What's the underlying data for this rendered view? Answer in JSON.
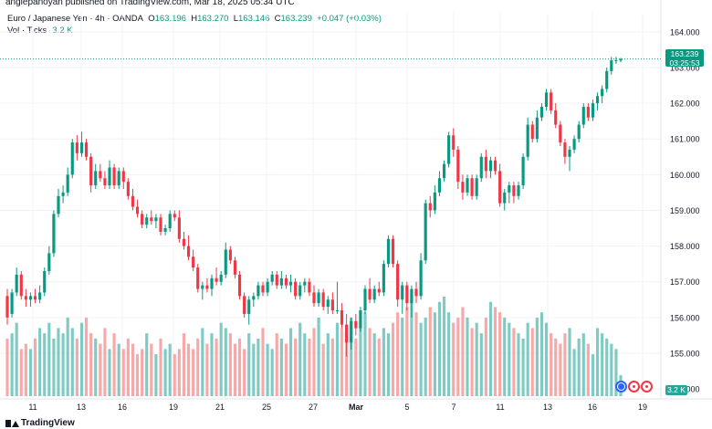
{
  "header": {
    "credit": "anglepanoyan published on TradingView.com, Mar 18, 2025 05:34 UTC"
  },
  "legend": {
    "symbol": "Euro / Japanese Yen · 4h · OANDA",
    "open_label": "O",
    "open": "163.196",
    "high_label": "H",
    "high": "163.270",
    "low_label": "L",
    "low": "163.146",
    "close_label": "C",
    "close": "163.239",
    "change": "+0.047 (+0.03%)",
    "volume_label": "Vol · Ticks",
    "volume_value": "3.2 K"
  },
  "price_tag": {
    "price": "163.239",
    "countdown": "03:25:53"
  },
  "volume_tag": "3.2 K",
  "footer": {
    "brand": "TradingView"
  },
  "colors": {
    "up": "#089981",
    "down": "#f23645",
    "vol_up": "#7fcbc4",
    "vol_down": "#f7a9a9",
    "grid": "#f0f3fa",
    "axis_text": "#131722"
  },
  "chart_data": {
    "type": "candlestick",
    "interval": "4h",
    "y_axis_ticks": [
      "164.000",
      "163.000",
      "162.000",
      "161.000",
      "160.000",
      "159.000",
      "158.000",
      "157.000",
      "156.000",
      "155.000",
      "154.000"
    ],
    "ylim": [
      153.9,
      164.2
    ],
    "x_axis_ticks": [
      "11",
      "13",
      "16",
      "19",
      "21",
      "25",
      "27",
      "Mar",
      "5",
      "7",
      "11",
      "13",
      "16",
      "19"
    ],
    "grid": true,
    "last_price_line": 163.239,
    "candles": [
      {
        "o": 156.6,
        "h": 156.8,
        "l": 155.8,
        "c": 156.0
      },
      {
        "o": 156.1,
        "h": 156.8,
        "l": 156.0,
        "c": 156.7
      },
      {
        "o": 156.7,
        "h": 157.4,
        "l": 156.6,
        "c": 157.2
      },
      {
        "o": 157.2,
        "h": 157.3,
        "l": 156.5,
        "c": 156.6
      },
      {
        "o": 156.6,
        "h": 156.8,
        "l": 156.3,
        "c": 156.5
      },
      {
        "o": 156.5,
        "h": 156.7,
        "l": 156.3,
        "c": 156.6
      },
      {
        "o": 156.6,
        "h": 156.8,
        "l": 156.4,
        "c": 156.5
      },
      {
        "o": 156.5,
        "h": 156.9,
        "l": 156.4,
        "c": 156.7
      },
      {
        "o": 156.7,
        "h": 157.4,
        "l": 156.6,
        "c": 157.3
      },
      {
        "o": 157.3,
        "h": 158.0,
        "l": 157.2,
        "c": 157.8
      },
      {
        "o": 157.8,
        "h": 159.0,
        "l": 157.7,
        "c": 158.9
      },
      {
        "o": 158.9,
        "h": 159.6,
        "l": 158.8,
        "c": 159.4
      },
      {
        "o": 159.4,
        "h": 159.7,
        "l": 159.2,
        "c": 159.5
      },
      {
        "o": 159.5,
        "h": 160.2,
        "l": 159.4,
        "c": 160.0
      },
      {
        "o": 160.0,
        "h": 161.0,
        "l": 159.9,
        "c": 160.9
      },
      {
        "o": 160.9,
        "h": 161.1,
        "l": 160.4,
        "c": 160.6
      },
      {
        "o": 160.6,
        "h": 161.2,
        "l": 160.5,
        "c": 160.9
      },
      {
        "o": 160.9,
        "h": 161.0,
        "l": 160.4,
        "c": 160.5
      },
      {
        "o": 160.5,
        "h": 160.6,
        "l": 159.5,
        "c": 159.7
      },
      {
        "o": 159.7,
        "h": 160.3,
        "l": 159.6,
        "c": 160.1
      },
      {
        "o": 160.1,
        "h": 160.3,
        "l": 159.8,
        "c": 159.9
      },
      {
        "o": 159.9,
        "h": 160.1,
        "l": 159.6,
        "c": 159.7
      },
      {
        "o": 159.7,
        "h": 160.4,
        "l": 159.6,
        "c": 160.2
      },
      {
        "o": 160.2,
        "h": 160.3,
        "l": 159.6,
        "c": 159.7
      },
      {
        "o": 159.7,
        "h": 160.2,
        "l": 159.6,
        "c": 160.1
      },
      {
        "o": 160.1,
        "h": 160.2,
        "l": 159.6,
        "c": 159.8
      },
      {
        "o": 159.8,
        "h": 159.9,
        "l": 159.3,
        "c": 159.4
      },
      {
        "o": 159.4,
        "h": 159.6,
        "l": 159.0,
        "c": 159.1
      },
      {
        "o": 159.1,
        "h": 159.3,
        "l": 158.8,
        "c": 158.9
      },
      {
        "o": 158.9,
        "h": 159.0,
        "l": 158.5,
        "c": 158.6
      },
      {
        "o": 158.6,
        "h": 158.9,
        "l": 158.5,
        "c": 158.8
      },
      {
        "o": 158.8,
        "h": 159.0,
        "l": 158.6,
        "c": 158.7
      },
      {
        "o": 158.7,
        "h": 158.9,
        "l": 158.5,
        "c": 158.8
      },
      {
        "o": 158.8,
        "h": 158.9,
        "l": 158.3,
        "c": 158.4
      },
      {
        "o": 158.4,
        "h": 158.6,
        "l": 158.3,
        "c": 158.5
      },
      {
        "o": 158.5,
        "h": 159.0,
        "l": 158.4,
        "c": 158.9
      },
      {
        "o": 158.9,
        "h": 159.0,
        "l": 158.7,
        "c": 158.8
      },
      {
        "o": 158.8,
        "h": 159.0,
        "l": 158.1,
        "c": 158.2
      },
      {
        "o": 158.2,
        "h": 158.4,
        "l": 157.9,
        "c": 158.0
      },
      {
        "o": 158.0,
        "h": 158.3,
        "l": 157.6,
        "c": 157.7
      },
      {
        "o": 157.7,
        "h": 157.9,
        "l": 157.3,
        "c": 157.4
      },
      {
        "o": 157.4,
        "h": 157.5,
        "l": 156.7,
        "c": 156.8
      },
      {
        "o": 156.8,
        "h": 157.0,
        "l": 156.5,
        "c": 156.9
      },
      {
        "o": 156.9,
        "h": 157.1,
        "l": 156.7,
        "c": 156.8
      },
      {
        "o": 156.8,
        "h": 157.2,
        "l": 156.6,
        "c": 157.1
      },
      {
        "o": 157.1,
        "h": 157.4,
        "l": 156.9,
        "c": 157.0
      },
      {
        "o": 157.0,
        "h": 157.3,
        "l": 156.9,
        "c": 157.2
      },
      {
        "o": 157.2,
        "h": 158.1,
        "l": 157.1,
        "c": 157.9
      },
      {
        "o": 157.9,
        "h": 158.0,
        "l": 157.5,
        "c": 157.6
      },
      {
        "o": 157.6,
        "h": 157.7,
        "l": 157.1,
        "c": 157.2
      },
      {
        "o": 157.2,
        "h": 157.3,
        "l": 156.5,
        "c": 156.6
      },
      {
        "o": 156.6,
        "h": 156.7,
        "l": 156.0,
        "c": 156.1
      },
      {
        "o": 156.1,
        "h": 156.6,
        "l": 155.8,
        "c": 156.5
      },
      {
        "o": 156.5,
        "h": 156.7,
        "l": 156.3,
        "c": 156.6
      },
      {
        "o": 156.6,
        "h": 157.0,
        "l": 156.5,
        "c": 156.9
      },
      {
        "o": 156.9,
        "h": 157.0,
        "l": 156.6,
        "c": 156.7
      },
      {
        "o": 156.7,
        "h": 157.1,
        "l": 156.6,
        "c": 157.0
      },
      {
        "o": 157.0,
        "h": 157.3,
        "l": 156.9,
        "c": 157.2
      },
      {
        "o": 157.2,
        "h": 157.3,
        "l": 156.8,
        "c": 156.9
      },
      {
        "o": 156.9,
        "h": 157.3,
        "l": 156.8,
        "c": 157.1
      },
      {
        "o": 157.1,
        "h": 157.2,
        "l": 156.8,
        "c": 156.9
      },
      {
        "o": 156.9,
        "h": 157.2,
        "l": 156.7,
        "c": 157.0
      },
      {
        "o": 157.0,
        "h": 157.1,
        "l": 156.5,
        "c": 156.6
      },
      {
        "o": 156.6,
        "h": 157.0,
        "l": 156.5,
        "c": 156.9
      },
      {
        "o": 156.9,
        "h": 157.1,
        "l": 156.7,
        "c": 157.0
      },
      {
        "o": 157.0,
        "h": 157.1,
        "l": 156.6,
        "c": 156.7
      },
      {
        "o": 156.7,
        "h": 156.9,
        "l": 156.3,
        "c": 156.4
      },
      {
        "o": 156.4,
        "h": 156.8,
        "l": 156.3,
        "c": 156.7
      },
      {
        "o": 156.7,
        "h": 156.8,
        "l": 156.2,
        "c": 156.3
      },
      {
        "o": 156.3,
        "h": 156.6,
        "l": 156.1,
        "c": 156.5
      },
      {
        "o": 156.5,
        "h": 156.7,
        "l": 156.1,
        "c": 156.2
      },
      {
        "o": 156.2,
        "h": 157.0,
        "l": 156.1,
        "c": 156.2
      },
      {
        "o": 156.2,
        "h": 156.4,
        "l": 155.7,
        "c": 155.8
      },
      {
        "o": 155.8,
        "h": 156.1,
        "l": 154.9,
        "c": 155.3
      },
      {
        "o": 155.3,
        "h": 156.0,
        "l": 155.1,
        "c": 155.9
      },
      {
        "o": 155.9,
        "h": 156.1,
        "l": 155.5,
        "c": 155.7
      },
      {
        "o": 155.7,
        "h": 156.3,
        "l": 155.6,
        "c": 156.2
      },
      {
        "o": 156.2,
        "h": 156.9,
        "l": 156.1,
        "c": 156.8
      },
      {
        "o": 156.8,
        "h": 157.1,
        "l": 156.4,
        "c": 156.5
      },
      {
        "o": 156.5,
        "h": 156.9,
        "l": 156.4,
        "c": 156.8
      },
      {
        "o": 156.8,
        "h": 157.0,
        "l": 156.6,
        "c": 156.7
      },
      {
        "o": 156.7,
        "h": 157.6,
        "l": 156.6,
        "c": 157.5
      },
      {
        "o": 157.5,
        "h": 158.3,
        "l": 157.4,
        "c": 158.2
      },
      {
        "o": 158.2,
        "h": 158.3,
        "l": 157.4,
        "c": 157.5
      },
      {
        "o": 157.5,
        "h": 157.6,
        "l": 156.3,
        "c": 156.5
      },
      {
        "o": 156.5,
        "h": 157.0,
        "l": 156.1,
        "c": 156.9
      },
      {
        "o": 156.9,
        "h": 157.0,
        "l": 156.2,
        "c": 156.4
      },
      {
        "o": 156.4,
        "h": 156.9,
        "l": 156.0,
        "c": 156.8
      },
      {
        "o": 156.8,
        "h": 157.0,
        "l": 156.4,
        "c": 156.6
      },
      {
        "o": 156.6,
        "h": 157.8,
        "l": 156.5,
        "c": 157.6
      },
      {
        "o": 157.6,
        "h": 159.3,
        "l": 157.5,
        "c": 159.2
      },
      {
        "o": 159.2,
        "h": 159.4,
        "l": 158.8,
        "c": 159.0
      },
      {
        "o": 159.0,
        "h": 159.7,
        "l": 158.9,
        "c": 159.5
      },
      {
        "o": 159.5,
        "h": 160.1,
        "l": 159.4,
        "c": 159.9
      },
      {
        "o": 159.9,
        "h": 160.4,
        "l": 159.8,
        "c": 160.3
      },
      {
        "o": 160.3,
        "h": 161.2,
        "l": 160.2,
        "c": 161.1
      },
      {
        "o": 161.1,
        "h": 161.3,
        "l": 160.5,
        "c": 160.7
      },
      {
        "o": 160.7,
        "h": 160.8,
        "l": 159.6,
        "c": 159.8
      },
      {
        "o": 159.8,
        "h": 160.0,
        "l": 159.3,
        "c": 159.5
      },
      {
        "o": 159.5,
        "h": 160.0,
        "l": 159.4,
        "c": 159.9
      },
      {
        "o": 159.9,
        "h": 160.0,
        "l": 159.3,
        "c": 159.4
      },
      {
        "o": 159.4,
        "h": 160.0,
        "l": 159.3,
        "c": 159.9
      },
      {
        "o": 159.9,
        "h": 160.6,
        "l": 159.8,
        "c": 160.5
      },
      {
        "o": 160.5,
        "h": 160.7,
        "l": 159.9,
        "c": 160.1
      },
      {
        "o": 160.1,
        "h": 160.5,
        "l": 159.9,
        "c": 160.4
      },
      {
        "o": 160.4,
        "h": 160.5,
        "l": 160.0,
        "c": 160.1
      },
      {
        "o": 160.1,
        "h": 160.3,
        "l": 159.1,
        "c": 159.2
      },
      {
        "o": 159.2,
        "h": 159.6,
        "l": 159.0,
        "c": 159.5
      },
      {
        "o": 159.5,
        "h": 159.8,
        "l": 159.2,
        "c": 159.7
      },
      {
        "o": 159.7,
        "h": 159.8,
        "l": 159.2,
        "c": 159.4
      },
      {
        "o": 159.4,
        "h": 159.8,
        "l": 159.3,
        "c": 159.7
      },
      {
        "o": 159.7,
        "h": 160.6,
        "l": 159.6,
        "c": 160.5
      },
      {
        "o": 160.5,
        "h": 161.6,
        "l": 160.4,
        "c": 161.4
      },
      {
        "o": 161.4,
        "h": 161.5,
        "l": 160.9,
        "c": 161.0
      },
      {
        "o": 161.0,
        "h": 161.8,
        "l": 160.9,
        "c": 161.6
      },
      {
        "o": 161.6,
        "h": 162.0,
        "l": 161.5,
        "c": 161.9
      },
      {
        "o": 161.9,
        "h": 162.4,
        "l": 161.8,
        "c": 162.3
      },
      {
        "o": 162.3,
        "h": 162.4,
        "l": 161.7,
        "c": 161.8
      },
      {
        "o": 161.8,
        "h": 162.0,
        "l": 161.3,
        "c": 161.4
      },
      {
        "o": 161.4,
        "h": 161.5,
        "l": 160.8,
        "c": 160.9
      },
      {
        "o": 160.9,
        "h": 161.0,
        "l": 160.3,
        "c": 160.5
      },
      {
        "o": 160.5,
        "h": 160.8,
        "l": 160.1,
        "c": 160.7
      },
      {
        "o": 160.7,
        "h": 161.1,
        "l": 160.6,
        "c": 161.0
      },
      {
        "o": 161.0,
        "h": 161.5,
        "l": 160.9,
        "c": 161.4
      },
      {
        "o": 161.4,
        "h": 162.0,
        "l": 161.3,
        "c": 161.9
      },
      {
        "o": 161.9,
        "h": 162.0,
        "l": 161.5,
        "c": 161.6
      },
      {
        "o": 161.6,
        "h": 162.1,
        "l": 161.5,
        "c": 162.0
      },
      {
        "o": 162.0,
        "h": 162.3,
        "l": 161.8,
        "c": 162.2
      },
      {
        "o": 162.2,
        "h": 162.5,
        "l": 162.0,
        "c": 162.4
      },
      {
        "o": 162.4,
        "h": 163.0,
        "l": 162.3,
        "c": 162.9
      },
      {
        "o": 162.9,
        "h": 163.3,
        "l": 162.8,
        "c": 163.2
      },
      {
        "o": 163.2,
        "h": 163.3,
        "l": 163.1,
        "c": 163.2
      },
      {
        "o": 163.196,
        "h": 163.27,
        "l": 163.146,
        "c": 163.239
      }
    ],
    "volume_max_ticks": 15000,
    "volume": [
      11,
      12,
      14,
      9,
      10,
      9,
      11,
      13,
      12,
      14,
      11,
      13,
      12,
      15,
      13,
      11,
      14,
      15,
      12,
      11,
      10,
      13,
      9,
      12,
      10,
      9,
      11,
      10,
      8,
      9,
      12,
      10,
      8,
      11,
      9,
      10,
      8,
      9,
      12,
      10,
      9,
      11,
      13,
      10,
      12,
      11,
      14,
      13,
      12,
      10,
      11,
      9,
      12,
      10,
      11,
      13,
      10,
      9,
      12,
      11,
      10,
      13,
      11,
      14,
      12,
      11,
      13,
      15,
      10,
      12,
      11,
      14,
      13,
      12,
      15,
      11,
      14,
      16,
      13,
      12,
      11,
      13,
      12,
      14,
      16,
      15,
      17,
      18,
      16,
      14,
      15,
      17,
      16,
      18,
      19,
      16,
      14,
      15,
      17,
      15,
      13,
      14,
      12,
      15,
      18,
      17,
      16,
      15,
      14,
      13,
      12,
      11,
      14,
      13,
      15,
      16,
      14,
      12,
      11,
      10,
      12,
      13,
      9,
      11,
      12,
      10,
      8,
      13,
      12,
      11,
      10,
      9,
      4
    ]
  }
}
